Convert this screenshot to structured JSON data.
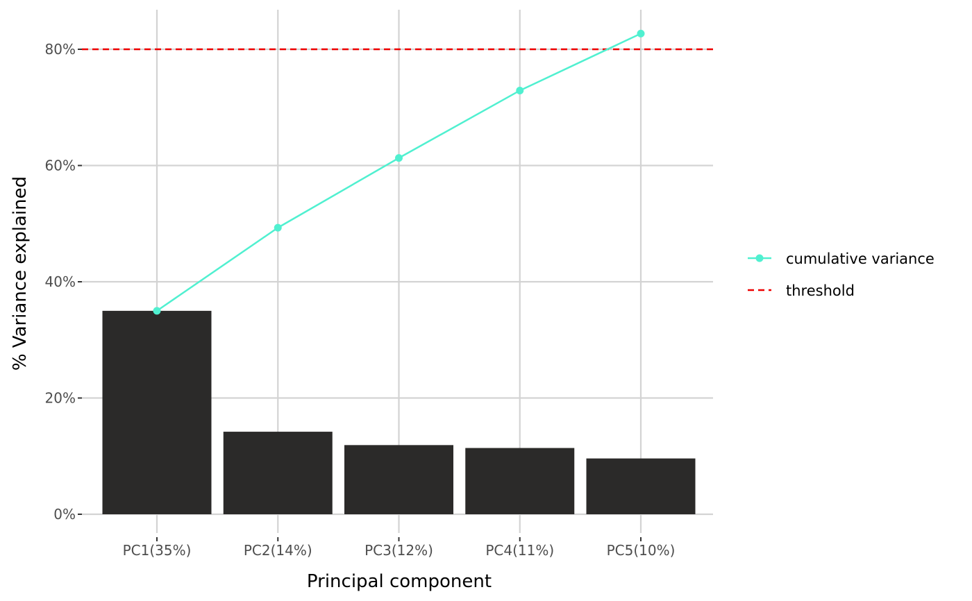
{
  "chart_data": {
    "type": "bar",
    "title": "",
    "xlabel": "Principal component",
    "ylabel": "% Variance explained",
    "categories": [
      "PC1(35%)",
      "PC2(14%)",
      "PC3(12%)",
      "PC4(11%)",
      "PC5(10%)"
    ],
    "series": [
      {
        "kind": "bar",
        "values": [
          35.0,
          14.2,
          11.9,
          11.4,
          9.6
        ],
        "color": "#2b2a29"
      },
      {
        "kind": "line",
        "name": "cumulative variance",
        "values": [
          35.0,
          49.3,
          61.3,
          72.9,
          82.7
        ],
        "color": "#50f0d0"
      }
    ],
    "threshold": {
      "name": "threshold",
      "value": 80,
      "color": "#ee0000",
      "style": "dashed"
    },
    "y_ticks": [
      {
        "value": 0,
        "label": "0%"
      },
      {
        "value": 20,
        "label": "20%"
      },
      {
        "value": 40,
        "label": "40%"
      },
      {
        "value": 60,
        "label": "60%"
      },
      {
        "value": 80,
        "label": "80%"
      }
    ],
    "ylim": [
      -2,
      87
    ],
    "grid": true,
    "legend_position": "right"
  }
}
